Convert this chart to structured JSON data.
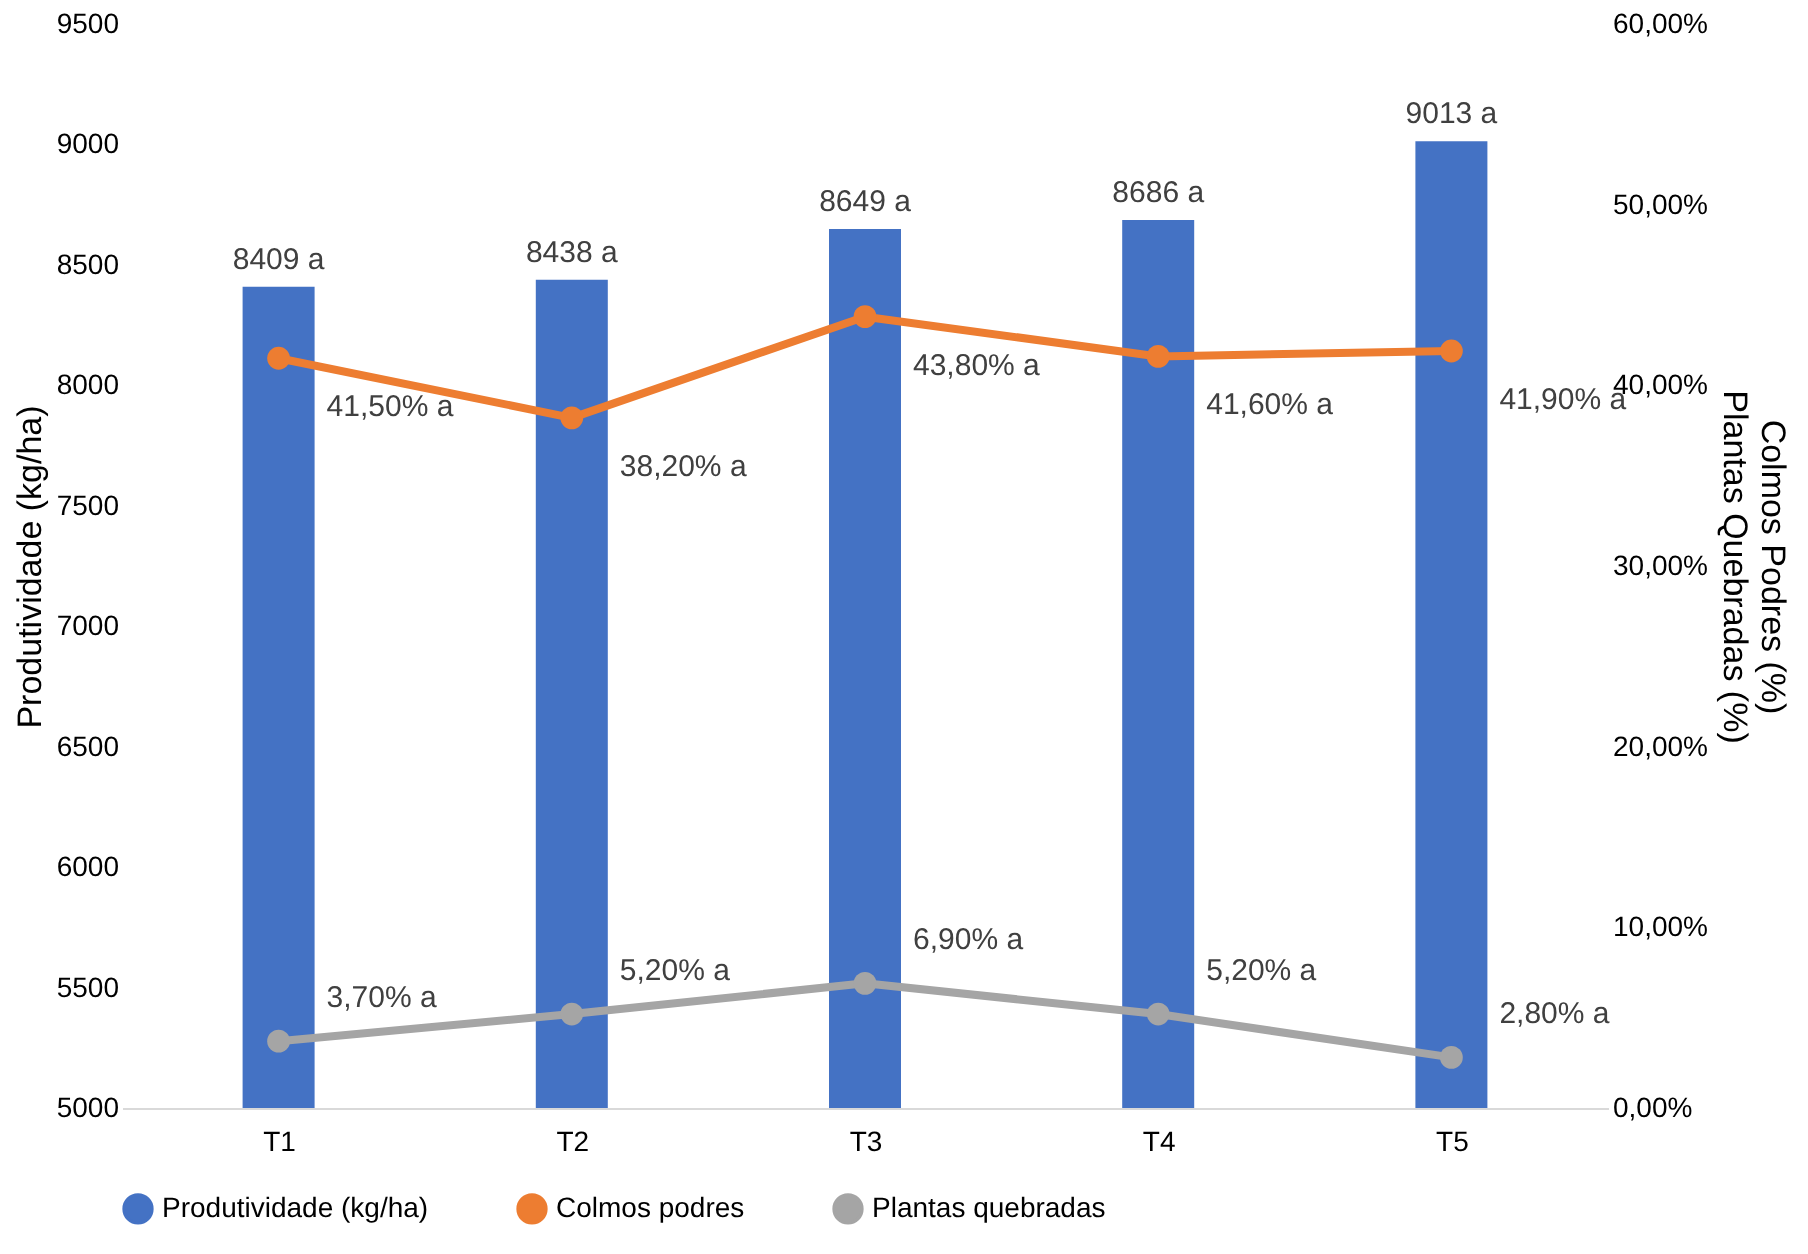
{
  "chart_data": {
    "type": "bar",
    "categories": [
      "T1",
      "T2",
      "T3",
      "T4",
      "T5"
    ],
    "ylabel": "Produtividade (kg/ha)",
    "y2label": "Colmos Podres (%)\nPlantas Quebradas (%)",
    "series": [
      {
        "name": "Produtividade (kg/ha)",
        "color": "#4472c4",
        "values": [
          8409,
          8438,
          8649,
          8686,
          9013
        ],
        "value_labels": [
          "8409 a",
          "8438 a",
          "8649 a",
          "8686 a",
          "9013 a"
        ]
      },
      {
        "name": "Colmos podres",
        "type": "line",
        "axis": "y2",
        "color": "#ed7d31",
        "values": [
          41.5,
          38.2,
          43.8,
          41.6,
          41.9
        ],
        "value_labels": [
          "41,50% a",
          "38,20% a",
          "43,80% a",
          "41,60% a",
          "41,90% a"
        ]
      },
      {
        "name": "Plantas quebradas",
        "type": "line",
        "axis": "y2",
        "color": "#a5a5a5",
        "values": [
          3.7,
          5.2,
          6.9,
          5.2,
          2.8
        ],
        "value_labels": [
          "3,70% a",
          "5,20% a",
          "6,90% a",
          "5,20% a",
          "2,80% a"
        ]
      }
    ],
    "ylim": [
      5000,
      9500
    ],
    "yticks": [
      5000,
      5500,
      6000,
      6500,
      7000,
      7500,
      8000,
      8500,
      9000,
      9500
    ],
    "y2lim": [
      0,
      60
    ],
    "y2ticks": [
      {
        "value": 0,
        "label": "0,00%"
      },
      {
        "value": 10,
        "label": "10,00%"
      },
      {
        "value": 20,
        "label": "20,00%"
      },
      {
        "value": 30,
        "label": "30,00%"
      },
      {
        "value": 40,
        "label": "40,00%"
      },
      {
        "value": 50,
        "label": "50,00%"
      },
      {
        "value": 60,
        "label": "60,00%"
      }
    ],
    "marker": "circle",
    "legend": "bottom"
  }
}
